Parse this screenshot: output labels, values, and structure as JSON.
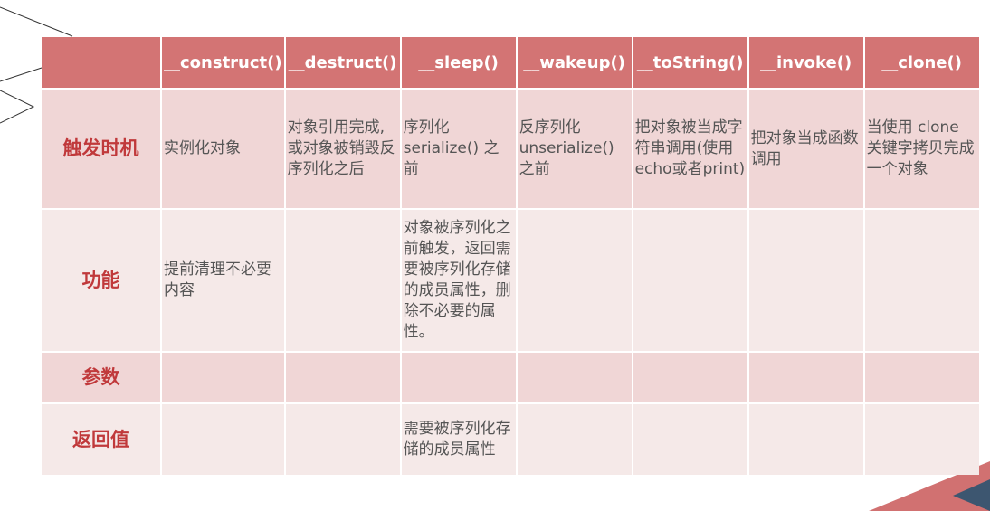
{
  "table": {
    "headers": [
      "",
      "__construct()",
      "__destruct()",
      "__sleep()",
      "__wakeup()",
      "__toString()",
      "__invoke()",
      "__clone()"
    ],
    "rows": [
      {
        "label": "触发时机",
        "cells": [
          "实例化对象",
          "对象引用完成,或对象被销毁反序列化之后",
          "序列化serialize() 之前",
          "反序列化unserialize()之前",
          "把对象被当成字符串调用(使用echo或者print)",
          "把对象当成函数调用",
          "当使用 clone 关键字拷贝完成一个对象"
        ]
      },
      {
        "label": "功能",
        "cells": [
          "提前清理不必要内容",
          "",
          "对象被序列化之前触发，返回需要被序列化存储的成员属性，删除不必要的属性。",
          "",
          "",
          "",
          ""
        ]
      },
      {
        "label": "参数",
        "cells": [
          "",
          "",
          "",
          "",
          "",
          "",
          ""
        ]
      },
      {
        "label": "返回值",
        "cells": [
          "",
          "",
          "需要被序列化存储的成员属性",
          "",
          "",
          "",
          ""
        ]
      }
    ]
  },
  "colors": {
    "header": "#d37474",
    "row_dark": "#f0d6d6",
    "row_light": "#f5e9e8",
    "label": "#c0393b",
    "accent_dark": "#3d5670"
  }
}
